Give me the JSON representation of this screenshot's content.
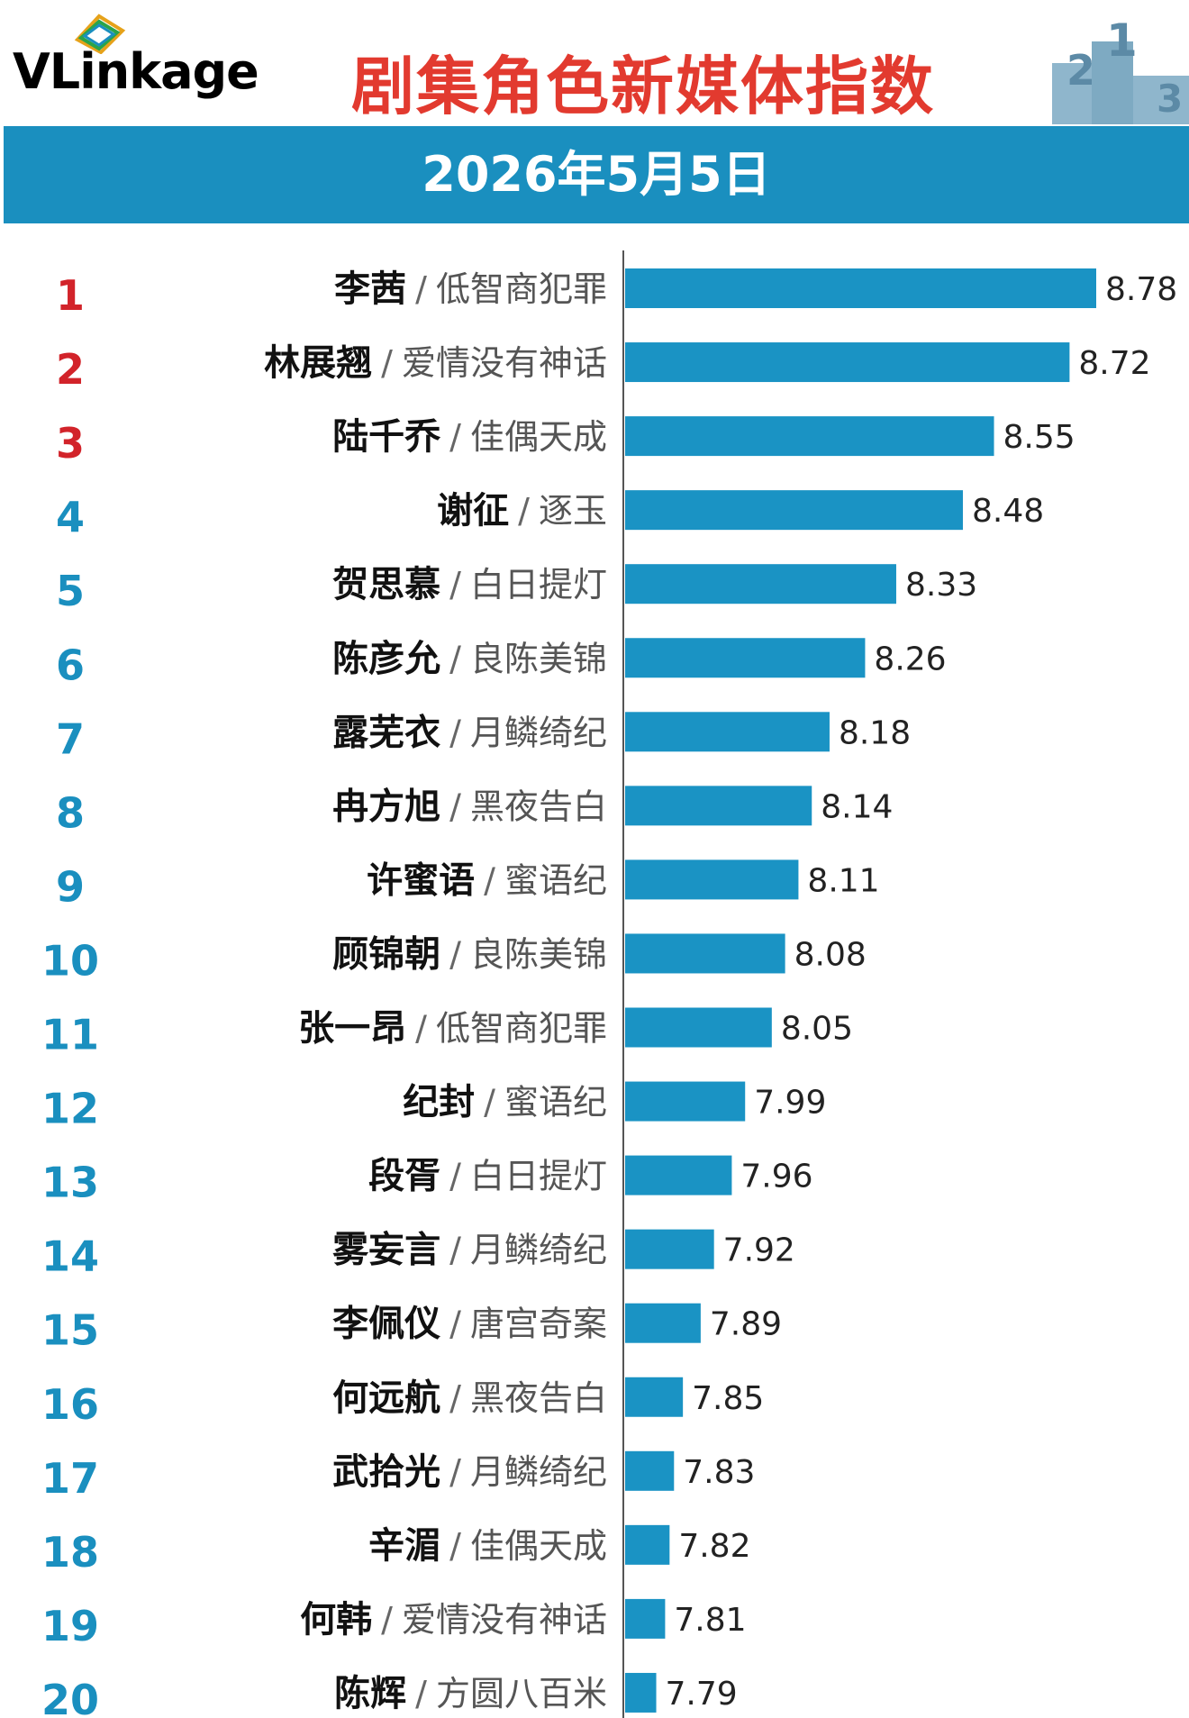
{
  "header": {
    "logo_text": "VLinkage",
    "title": "剧集角色新媒体指数",
    "date": "2026年5月5日"
  },
  "colors": {
    "bar": "#1a93c4",
    "rank_top": "#d2232a",
    "rank_other": "#1a8fbf",
    "header_band": "#1a8fbf",
    "title": "#e23a2f"
  },
  "chart_data": {
    "type": "bar",
    "orientation": "horizontal",
    "title": "剧集角色新媒体指数",
    "xlim": [
      0,
      8.78
    ],
    "categories": [
      {
        "rank": "1",
        "name": "李茜",
        "drama": "低智商犯罪"
      },
      {
        "rank": "2",
        "name": "林展翘",
        "drama": "爱情没有神话"
      },
      {
        "rank": "3",
        "name": "陆千乔",
        "drama": "佳偶天成"
      },
      {
        "rank": "4",
        "name": "谢征",
        "drama": "逐玉"
      },
      {
        "rank": "5",
        "name": "贺思慕",
        "drama": "白日提灯"
      },
      {
        "rank": "6",
        "name": "陈彦允",
        "drama": "良陈美锦"
      },
      {
        "rank": "7",
        "name": "露芜衣",
        "drama": "月鳞绮纪"
      },
      {
        "rank": "8",
        "name": "冉方旭",
        "drama": "黑夜告白"
      },
      {
        "rank": "9",
        "name": "许蜜语",
        "drama": "蜜语纪"
      },
      {
        "rank": "10",
        "name": "顾锦朝",
        "drama": "良陈美锦"
      },
      {
        "rank": "11",
        "name": "张一昂",
        "drama": "低智商犯罪"
      },
      {
        "rank": "12",
        "name": "纪封",
        "drama": "蜜语纪"
      },
      {
        "rank": "13",
        "name": "段胥",
        "drama": "白日提灯"
      },
      {
        "rank": "14",
        "name": "雾妄言",
        "drama": "月鳞绮纪"
      },
      {
        "rank": "15",
        "name": "李佩仪",
        "drama": "唐宫奇案"
      },
      {
        "rank": "16",
        "name": "何远航",
        "drama": "黑夜告白"
      },
      {
        "rank": "17",
        "name": "武拾光",
        "drama": "月鳞绮纪"
      },
      {
        "rank": "18",
        "name": "辛湄",
        "drama": "佳偶天成"
      },
      {
        "rank": "19",
        "name": "何韩",
        "drama": "爱情没有神话"
      },
      {
        "rank": "20",
        "name": "陈辉",
        "drama": "方圆八百米"
      }
    ],
    "values": [
      8.78,
      8.72,
      8.55,
      8.48,
      8.33,
      8.26,
      8.18,
      8.14,
      8.11,
      8.08,
      8.05,
      7.99,
      7.96,
      7.92,
      7.89,
      7.85,
      7.83,
      7.82,
      7.81,
      7.79
    ],
    "value_labels": [
      "8.78",
      "8.72",
      "8.55",
      "8.48",
      "8.33",
      "8.26",
      "8.18",
      "8.14",
      "8.11",
      "8.08",
      "8.05",
      "7.99",
      "7.96",
      "7.92",
      "7.89",
      "7.85",
      "7.83",
      "7.82",
      "7.81",
      "7.79"
    ],
    "separator": "/",
    "legend": "none",
    "grid": false
  }
}
